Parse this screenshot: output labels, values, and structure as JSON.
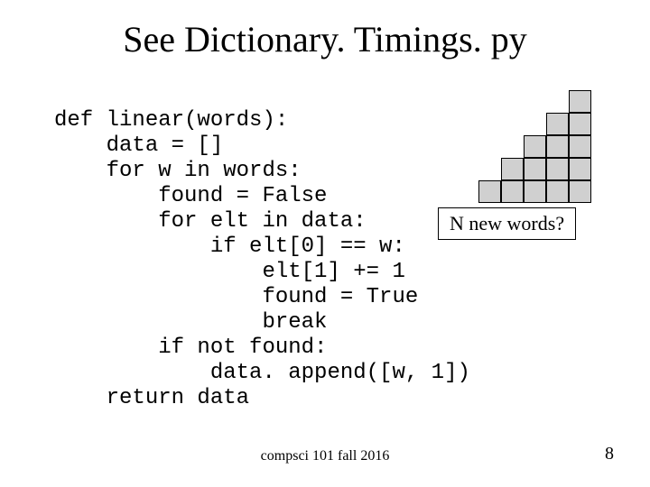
{
  "title": "See Dictionary. Timings. py",
  "code": {
    "l1": "def linear(words):",
    "l2": "    data = []",
    "l3": "    for w in words:",
    "l4": "        found = False",
    "l5": "        for elt in data:",
    "l6": "            if elt[0] == w:",
    "l7": "                elt[1] += 1",
    "l8": "                found = True",
    "l9": "                break",
    "l10": "        if not found:",
    "l11": "            data. append([w, 1])",
    "l12": "    return data"
  },
  "staircase": {
    "rows": [
      1,
      2,
      3,
      4,
      5
    ],
    "cell_size": 25,
    "max_cols": 7,
    "fill_color": "#d0d0d0",
    "border_color": "#000000"
  },
  "caption": "N new words?",
  "footer": "compsci 101 fall 2016",
  "page_number": "8",
  "colors": {
    "background": "#ffffff",
    "text": "#000000"
  },
  "fonts": {
    "title_family": "Times New Roman",
    "title_size_pt": 40,
    "code_family": "Courier New",
    "code_size_pt": 24,
    "caption_family": "Times New Roman",
    "caption_size_pt": 22,
    "footer_size_pt": 16,
    "pagenum_size_pt": 20
  }
}
